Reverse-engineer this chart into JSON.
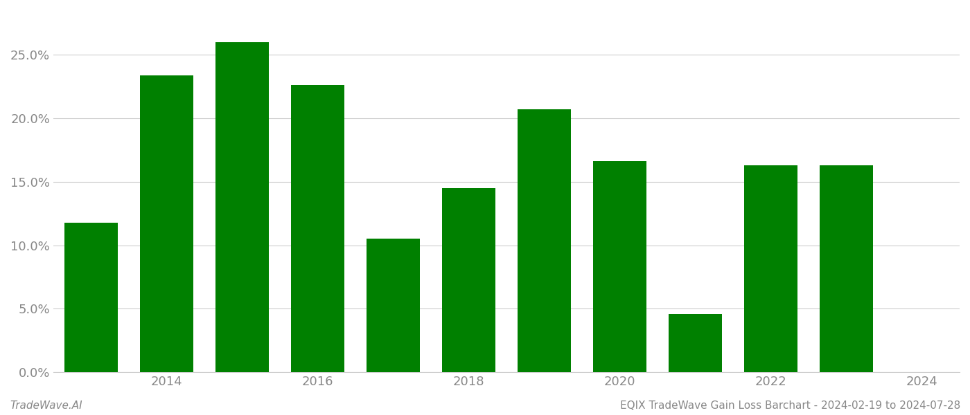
{
  "years": [
    2013,
    2014,
    2015,
    2016,
    2017,
    2018,
    2019,
    2020,
    2021,
    2022,
    2023
  ],
  "values": [
    0.1175,
    0.234,
    0.26,
    0.226,
    0.105,
    0.145,
    0.207,
    0.166,
    0.046,
    0.163,
    0.163
  ],
  "bar_color": "#008000",
  "yticks": [
    0.0,
    0.05,
    0.1,
    0.15,
    0.2,
    0.25
  ],
  "xticks": [
    2014,
    2016,
    2018,
    2020,
    2022,
    2024
  ],
  "xlim": [
    2012.5,
    2024.5
  ],
  "ylim": [
    0,
    0.285
  ],
  "footer_left": "TradeWave.AI",
  "footer_right": "EQIX TradeWave Gain Loss Barchart - 2024-02-19 to 2024-07-28",
  "background_color": "#ffffff",
  "grid_color": "#cccccc",
  "tick_label_color": "#888888",
  "bar_width": 0.7
}
